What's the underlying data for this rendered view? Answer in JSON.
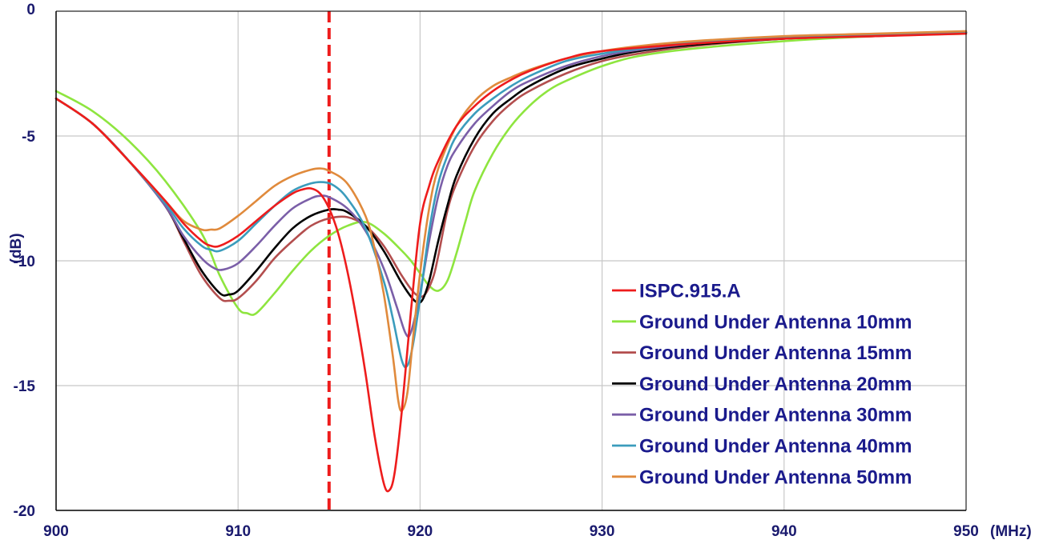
{
  "chart_data": {
    "type": "line",
    "title": "",
    "xlabel": "",
    "ylabel": "(dB)",
    "x_unit": "(MHz)",
    "xlim": [
      900,
      950
    ],
    "ylim": [
      -20,
      0
    ],
    "x_ticks": [
      900,
      910,
      920,
      930,
      940,
      950
    ],
    "y_ticks": [
      0,
      -5,
      -10,
      -15,
      -20
    ],
    "x_tick_labels": [
      "900",
      "910",
      "920",
      "930",
      "940",
      "950"
    ],
    "y_tick_labels": [
      "0",
      "-5",
      "-10",
      "-15",
      "-20"
    ],
    "grid": true,
    "legend_position": "bottom-right",
    "marker_line": {
      "x": 915,
      "color": "#ee1c1c",
      "style": "dashed"
    },
    "series": [
      {
        "name": "ISPC.915.A",
        "color": "#ee1c1c",
        "points": [
          [
            900,
            -3.5
          ],
          [
            902,
            -4.5
          ],
          [
            904,
            -6.0
          ],
          [
            906,
            -7.6
          ],
          [
            907,
            -8.5
          ],
          [
            908,
            -9.2
          ],
          [
            908.5,
            -9.4
          ],
          [
            909,
            -9.4
          ],
          [
            910,
            -9.0
          ],
          [
            911,
            -8.4
          ],
          [
            912,
            -7.8
          ],
          [
            913,
            -7.3
          ],
          [
            913.5,
            -7.15
          ],
          [
            914,
            -7.1
          ],
          [
            914.5,
            -7.3
          ],
          [
            915,
            -7.9
          ],
          [
            915.5,
            -8.9
          ],
          [
            916,
            -10.4
          ],
          [
            916.5,
            -12.3
          ],
          [
            917,
            -14.5
          ],
          [
            917.5,
            -17.0
          ],
          [
            918,
            -18.9
          ],
          [
            918.3,
            -19.2
          ],
          [
            918.6,
            -18.5
          ],
          [
            919,
            -16.0
          ],
          [
            919.5,
            -12.0
          ],
          [
            920,
            -8.5
          ],
          [
            920.5,
            -7.0
          ],
          [
            921,
            -6.0
          ],
          [
            922,
            -4.6
          ],
          [
            923,
            -3.8
          ],
          [
            924,
            -3.2
          ],
          [
            925,
            -2.75
          ],
          [
            926,
            -2.4
          ],
          [
            928,
            -1.9
          ],
          [
            930,
            -1.6
          ],
          [
            935,
            -1.3
          ],
          [
            940,
            -1.1
          ],
          [
            945,
            -1.0
          ],
          [
            950,
            -0.9
          ]
        ]
      },
      {
        "name": "Ground Under Antenna 10mm",
        "color": "#8ee53f",
        "points": [
          [
            900,
            -3.2
          ],
          [
            902,
            -4.0
          ],
          [
            904,
            -5.2
          ],
          [
            906,
            -6.8
          ],
          [
            908,
            -8.9
          ],
          [
            909,
            -10.6
          ],
          [
            910,
            -11.9
          ],
          [
            910.5,
            -12.1
          ],
          [
            911,
            -12.1
          ],
          [
            912,
            -11.3
          ],
          [
            913,
            -10.4
          ],
          [
            914,
            -9.6
          ],
          [
            915,
            -9.0
          ],
          [
            916,
            -8.6
          ],
          [
            917,
            -8.45
          ],
          [
            918,
            -8.9
          ],
          [
            919,
            -9.6
          ],
          [
            919.5,
            -10.0
          ],
          [
            920,
            -10.5
          ],
          [
            920.5,
            -11.0
          ],
          [
            921,
            -11.2
          ],
          [
            921.5,
            -10.8
          ],
          [
            922,
            -9.7
          ],
          [
            922.5,
            -8.4
          ],
          [
            923,
            -7.2
          ],
          [
            924,
            -5.7
          ],
          [
            925,
            -4.6
          ],
          [
            926,
            -3.8
          ],
          [
            927,
            -3.2
          ],
          [
            928,
            -2.8
          ],
          [
            930,
            -2.2
          ],
          [
            932,
            -1.8
          ],
          [
            935,
            -1.5
          ],
          [
            940,
            -1.2
          ],
          [
            945,
            -1.0
          ],
          [
            950,
            -0.9
          ]
        ]
      },
      {
        "name": "Ground Under Antenna 15mm",
        "color": "#b34e4e",
        "points": [
          [
            900,
            -3.5
          ],
          [
            902,
            -4.5
          ],
          [
            904,
            -6.0
          ],
          [
            906,
            -7.8
          ],
          [
            907,
            -9.2
          ],
          [
            908,
            -10.6
          ],
          [
            909,
            -11.5
          ],
          [
            909.5,
            -11.6
          ],
          [
            910,
            -11.5
          ],
          [
            911,
            -10.8
          ],
          [
            912,
            -9.9
          ],
          [
            913,
            -9.2
          ],
          [
            914,
            -8.6
          ],
          [
            915,
            -8.3
          ],
          [
            916,
            -8.25
          ],
          [
            917,
            -8.6
          ],
          [
            918,
            -9.4
          ],
          [
            919,
            -10.6
          ],
          [
            919.7,
            -11.3
          ],
          [
            920.2,
            -11.4
          ],
          [
            920.7,
            -10.7
          ],
          [
            921,
            -9.8
          ],
          [
            921.5,
            -8.0
          ],
          [
            922,
            -6.9
          ],
          [
            923,
            -5.4
          ],
          [
            924,
            -4.4
          ],
          [
            925,
            -3.7
          ],
          [
            926,
            -3.2
          ],
          [
            928,
            -2.5
          ],
          [
            930,
            -2.0
          ],
          [
            932,
            -1.7
          ],
          [
            935,
            -1.4
          ],
          [
            940,
            -1.1
          ],
          [
            945,
            -1.0
          ],
          [
            950,
            -0.85
          ]
        ]
      },
      {
        "name": "Ground Under Antenna 20mm",
        "color": "#000000",
        "points": [
          [
            900,
            -3.5
          ],
          [
            902,
            -4.5
          ],
          [
            904,
            -6.0
          ],
          [
            906,
            -7.8
          ],
          [
            907,
            -9.1
          ],
          [
            908,
            -10.4
          ],
          [
            909,
            -11.3
          ],
          [
            909.5,
            -11.35
          ],
          [
            910,
            -11.2
          ],
          [
            911,
            -10.4
          ],
          [
            912,
            -9.5
          ],
          [
            913,
            -8.7
          ],
          [
            914,
            -8.2
          ],
          [
            915,
            -7.95
          ],
          [
            915.5,
            -7.95
          ],
          [
            916,
            -8.05
          ],
          [
            917,
            -8.6
          ],
          [
            918,
            -9.6
          ],
          [
            919,
            -10.9
          ],
          [
            919.7,
            -11.6
          ],
          [
            920.1,
            -11.6
          ],
          [
            920.5,
            -10.8
          ],
          [
            921,
            -9.2
          ],
          [
            921.5,
            -7.8
          ],
          [
            922,
            -6.6
          ],
          [
            923,
            -5.1
          ],
          [
            924,
            -4.1
          ],
          [
            925,
            -3.5
          ],
          [
            926,
            -3.0
          ],
          [
            928,
            -2.3
          ],
          [
            930,
            -1.9
          ],
          [
            932,
            -1.6
          ],
          [
            935,
            -1.35
          ],
          [
            940,
            -1.1
          ],
          [
            945,
            -0.95
          ],
          [
            950,
            -0.85
          ]
        ]
      },
      {
        "name": "Ground Under Antenna 30mm",
        "color": "#7b5fa8",
        "points": [
          [
            900,
            -3.5
          ],
          [
            902,
            -4.5
          ],
          [
            904,
            -6.0
          ],
          [
            906,
            -7.8
          ],
          [
            907,
            -9.0
          ],
          [
            908,
            -9.9
          ],
          [
            908.7,
            -10.3
          ],
          [
            909.2,
            -10.35
          ],
          [
            910,
            -10.1
          ],
          [
            911,
            -9.4
          ],
          [
            912,
            -8.6
          ],
          [
            913,
            -7.9
          ],
          [
            914,
            -7.5
          ],
          [
            914.5,
            -7.4
          ],
          [
            915,
            -7.45
          ],
          [
            916,
            -7.9
          ],
          [
            917,
            -8.8
          ],
          [
            918,
            -10.3
          ],
          [
            918.7,
            -11.8
          ],
          [
            919.2,
            -12.9
          ],
          [
            919.5,
            -12.85
          ],
          [
            920,
            -11.3
          ],
          [
            920.5,
            -9.2
          ],
          [
            921,
            -7.4
          ],
          [
            921.5,
            -6.2
          ],
          [
            922,
            -5.5
          ],
          [
            923,
            -4.5
          ],
          [
            924,
            -3.8
          ],
          [
            925,
            -3.2
          ],
          [
            926,
            -2.8
          ],
          [
            928,
            -2.2
          ],
          [
            930,
            -1.8
          ],
          [
            932,
            -1.55
          ],
          [
            935,
            -1.3
          ],
          [
            940,
            -1.05
          ],
          [
            945,
            -0.95
          ],
          [
            950,
            -0.85
          ]
        ]
      },
      {
        "name": "Ground Under Antenna 40mm",
        "color": "#3b9cbc",
        "points": [
          [
            900,
            -3.5
          ],
          [
            902,
            -4.5
          ],
          [
            904,
            -6.0
          ],
          [
            906,
            -7.7
          ],
          [
            907,
            -8.7
          ],
          [
            908,
            -9.4
          ],
          [
            908.5,
            -9.55
          ],
          [
            909,
            -9.6
          ],
          [
            910,
            -9.2
          ],
          [
            911,
            -8.5
          ],
          [
            912,
            -7.8
          ],
          [
            913,
            -7.2
          ],
          [
            914,
            -6.9
          ],
          [
            914.7,
            -6.85
          ],
          [
            915.3,
            -7.0
          ],
          [
            916,
            -7.5
          ],
          [
            917,
            -8.7
          ],
          [
            918,
            -10.8
          ],
          [
            918.5,
            -12.3
          ],
          [
            919,
            -14.0
          ],
          [
            919.3,
            -14.2
          ],
          [
            919.6,
            -13.4
          ],
          [
            920,
            -11.5
          ],
          [
            920.5,
            -8.8
          ],
          [
            921,
            -6.9
          ],
          [
            921.5,
            -5.8
          ],
          [
            922,
            -5.0
          ],
          [
            923,
            -4.1
          ],
          [
            924,
            -3.5
          ],
          [
            925,
            -3.0
          ],
          [
            926,
            -2.6
          ],
          [
            928,
            -2.0
          ],
          [
            930,
            -1.7
          ],
          [
            932,
            -1.5
          ],
          [
            935,
            -1.25
          ],
          [
            940,
            -1.05
          ],
          [
            945,
            -0.93
          ],
          [
            950,
            -0.85
          ]
        ]
      },
      {
        "name": "Ground Under Antenna 50mm",
        "color": "#e08a3c",
        "points": [
          [
            900,
            -3.5
          ],
          [
            902,
            -4.5
          ],
          [
            904,
            -6.0
          ],
          [
            906,
            -7.6
          ],
          [
            907,
            -8.4
          ],
          [
            908,
            -8.75
          ],
          [
            908.5,
            -8.75
          ],
          [
            909,
            -8.7
          ],
          [
            910,
            -8.2
          ],
          [
            911,
            -7.6
          ],
          [
            912,
            -7.0
          ],
          [
            913,
            -6.6
          ],
          [
            914,
            -6.35
          ],
          [
            914.5,
            -6.3
          ],
          [
            915,
            -6.4
          ],
          [
            916,
            -6.9
          ],
          [
            917,
            -8.2
          ],
          [
            917.5,
            -9.5
          ],
          [
            918,
            -11.3
          ],
          [
            918.5,
            -13.8
          ],
          [
            918.8,
            -15.6
          ],
          [
            919,
            -16.0
          ],
          [
            919.3,
            -15.3
          ],
          [
            919.6,
            -13.2
          ],
          [
            920,
            -10.5
          ],
          [
            920.5,
            -7.9
          ],
          [
            921,
            -6.3
          ],
          [
            922,
            -4.6
          ],
          [
            923,
            -3.6
          ],
          [
            924,
            -3.0
          ],
          [
            925,
            -2.65
          ],
          [
            926,
            -2.35
          ],
          [
            928,
            -1.9
          ],
          [
            930,
            -1.6
          ],
          [
            932,
            -1.4
          ],
          [
            935,
            -1.2
          ],
          [
            940,
            -1.0
          ],
          [
            945,
            -0.9
          ],
          [
            950,
            -0.8
          ]
        ]
      }
    ]
  }
}
